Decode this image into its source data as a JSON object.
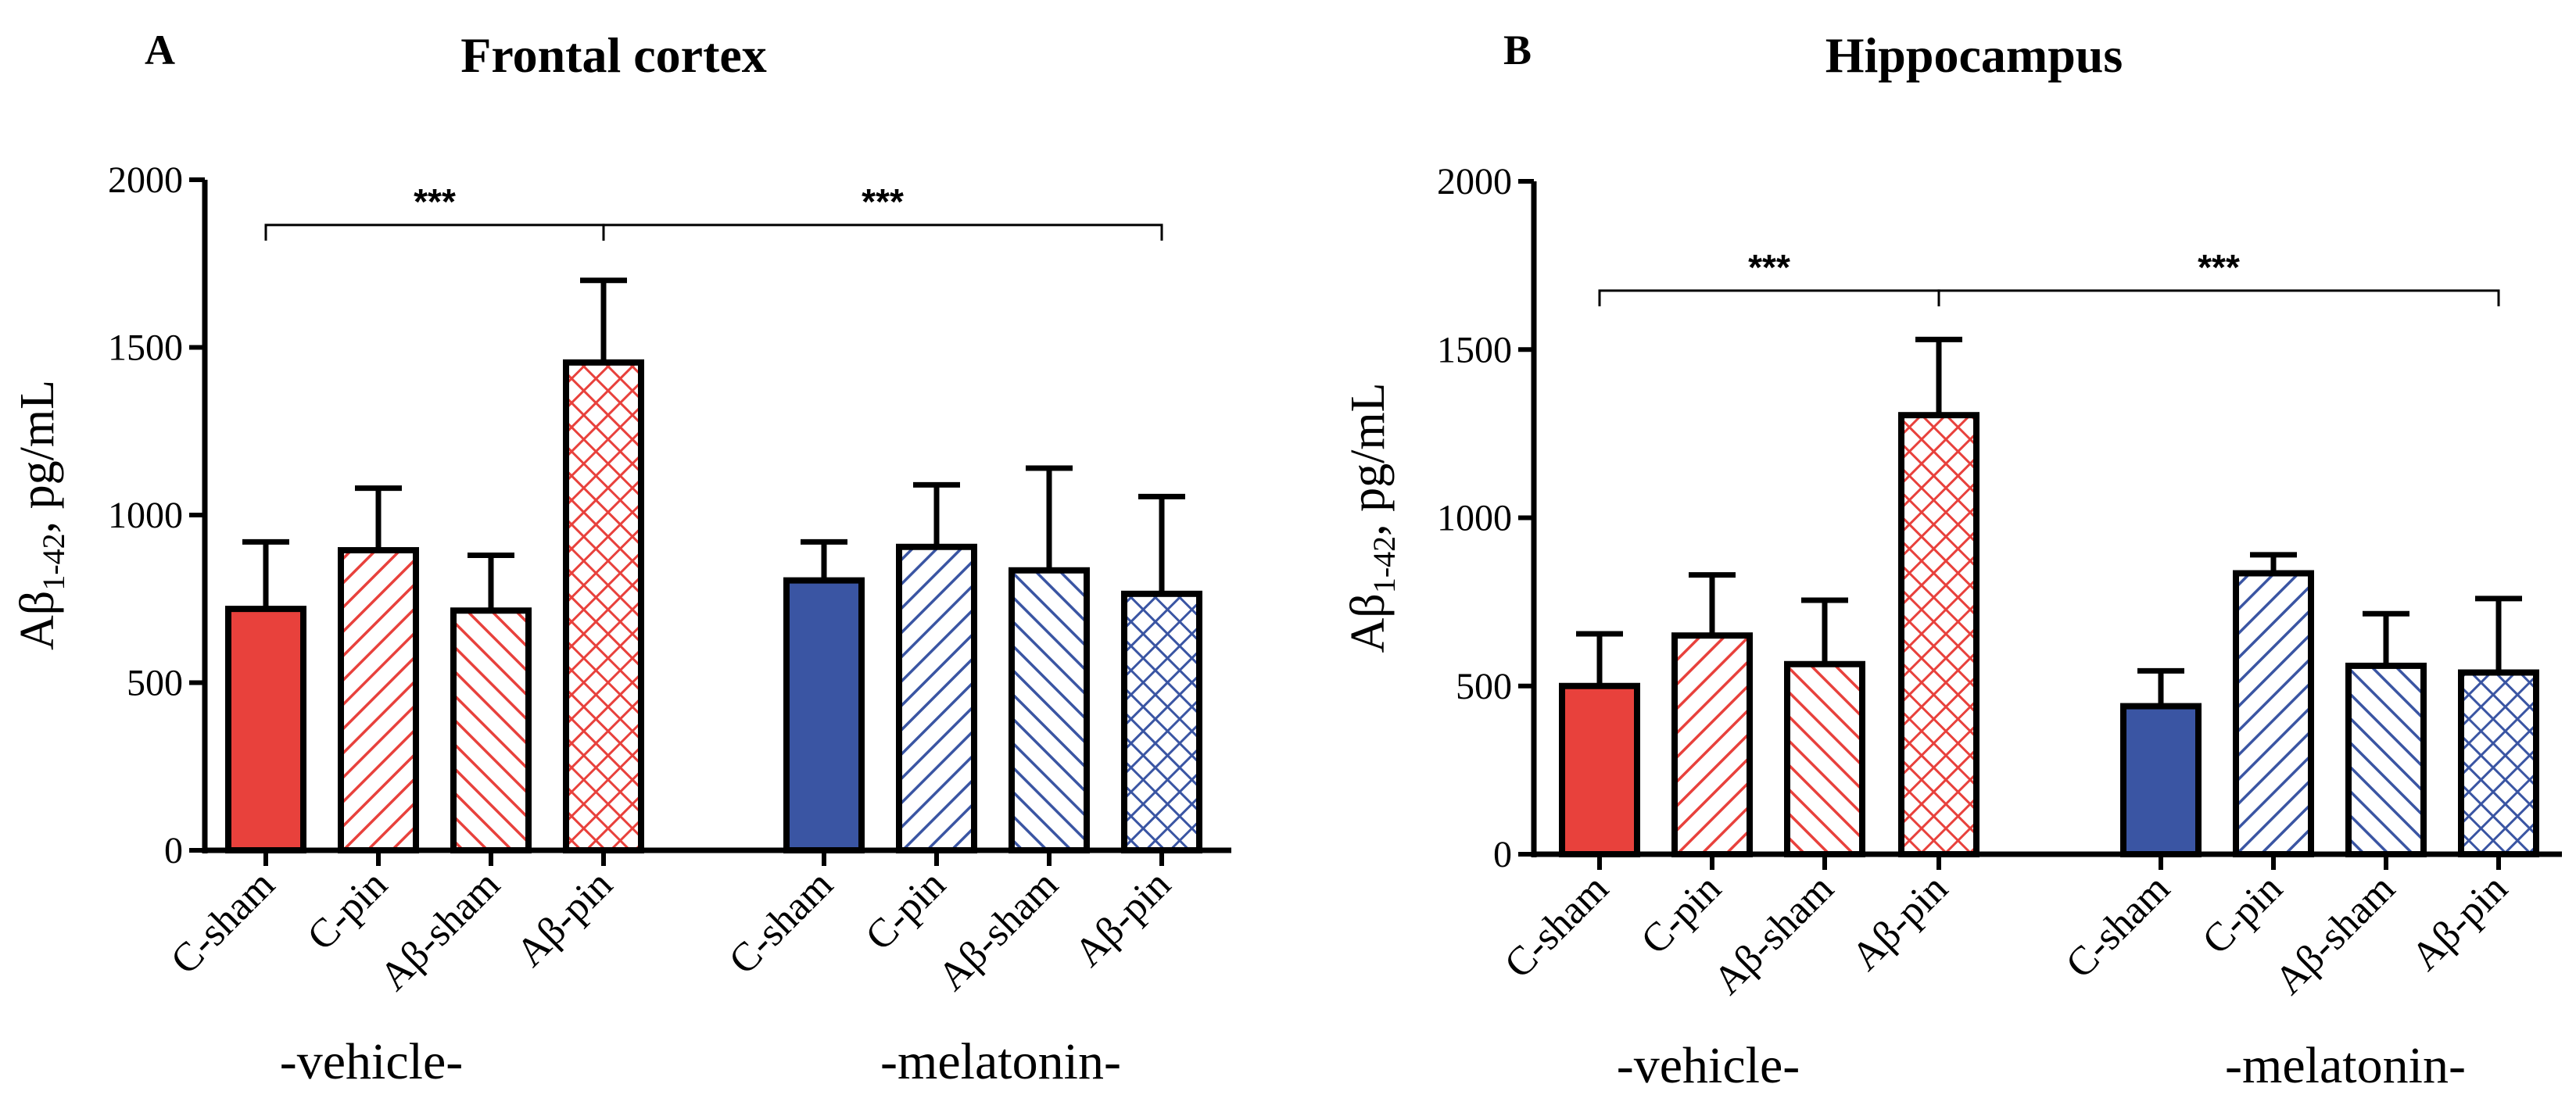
{
  "chart_data": [
    {
      "type": "bar",
      "panel_label": "A",
      "title": "Frontal cortex",
      "ylabel_main": "Aβ",
      "ylabel_sub": "1-42",
      "ylabel_unit": ", pg/mL",
      "ylim": [
        0,
        2000
      ],
      "yticks": [
        0,
        500,
        1000,
        1500,
        2000
      ],
      "groups": [
        "-vehicle-",
        "-melatonin-"
      ],
      "categories": [
        "C-sham",
        "C-pin",
        "Aβ-sham",
        "Aβ-pin",
        "C-sham",
        "C-pin",
        "Aβ-sham",
        "Aβ-pin"
      ],
      "values": [
        720,
        895,
        715,
        1455,
        805,
        905,
        835,
        765
      ],
      "error_upper": [
        920,
        1080,
        880,
        1700,
        920,
        1090,
        1140,
        1055
      ],
      "group_of_bar": [
        0,
        0,
        0,
        0,
        1,
        1,
        1,
        1
      ],
      "patterns": [
        "solid",
        "hatch-back",
        "hatch-fwd",
        "crosshatch",
        "solid",
        "hatch-back",
        "hatch-fwd",
        "crosshatch"
      ],
      "colors": [
        "#e8413c",
        "#e8413c",
        "#e8413c",
        "#e8413c",
        "#3a55a3",
        "#3a55a3",
        "#3a55a3",
        "#3a55a3"
      ],
      "significance": [
        {
          "from_bar": 0,
          "to_bar": 3,
          "label": "***",
          "level": 1865
        },
        {
          "from_bar": 3,
          "to_bar": 7,
          "label": "***",
          "level": 1865
        }
      ]
    },
    {
      "type": "bar",
      "panel_label": "B",
      "title": "Hippocampus",
      "ylabel_main": "Aβ",
      "ylabel_sub": "1-42",
      "ylabel_unit": ", pg/mL",
      "ylim": [
        0,
        2000
      ],
      "yticks": [
        0,
        500,
        1000,
        1500,
        2000
      ],
      "groups": [
        "-vehicle-",
        "-melatonin-"
      ],
      "categories": [
        "C-sham",
        "C-pin",
        "Aβ-sham",
        "Aβ-pin",
        "C-sham",
        "C-pin",
        "Aβ-sham",
        "Aβ-pin"
      ],
      "values": [
        500,
        650,
        565,
        1305,
        440,
        835,
        560,
        540
      ],
      "error_upper": [
        655,
        830,
        755,
        1530,
        545,
        890,
        715,
        760
      ],
      "group_of_bar": [
        0,
        0,
        0,
        0,
        1,
        1,
        1,
        1
      ],
      "patterns": [
        "solid",
        "hatch-back",
        "hatch-fwd",
        "crosshatch",
        "solid",
        "hatch-back",
        "hatch-fwd",
        "crosshatch"
      ],
      "colors": [
        "#e8413c",
        "#e8413c",
        "#e8413c",
        "#e8413c",
        "#3a55a3",
        "#3a55a3",
        "#3a55a3",
        "#3a55a3"
      ],
      "significance": [
        {
          "from_bar": 0,
          "to_bar": 3,
          "label": "***",
          "level": 1675
        },
        {
          "from_bar": 3,
          "to_bar": 7,
          "label": "***",
          "level": 1675
        }
      ]
    }
  ]
}
